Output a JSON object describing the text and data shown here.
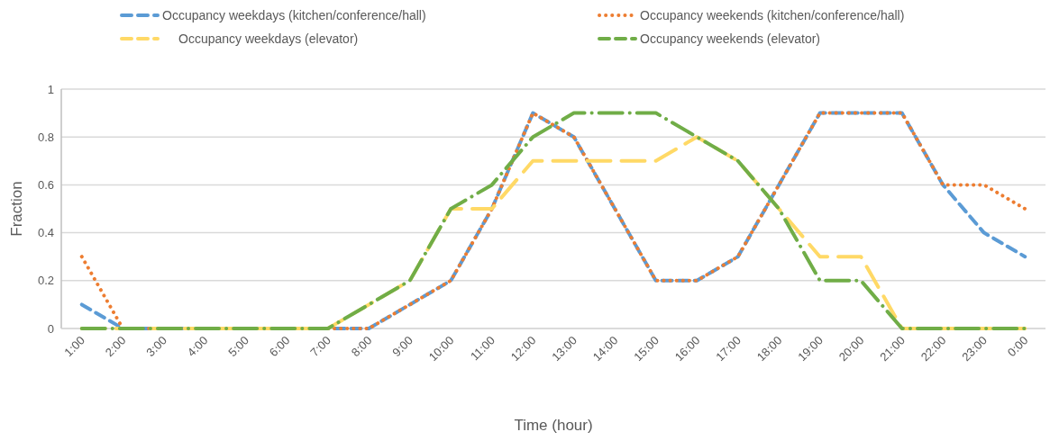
{
  "chart_data": {
    "type": "line",
    "xlabel": "Time (hour)",
    "ylabel": "Fraction",
    "categories": [
      "1:00",
      "2:00",
      "3:00",
      "4:00",
      "5:00",
      "6:00",
      "7:00",
      "8:00",
      "9:00",
      "10:00",
      "11:00",
      "12:00",
      "13:00",
      "14:00",
      "15:00",
      "16:00",
      "17:00",
      "18:00",
      "19:00",
      "20:00",
      "21:00",
      "22:00",
      "23:00",
      "0:00"
    ],
    "series": [
      {
        "name": "Occupancy weekdays (kitchen/conference/hall)",
        "color": "#5b9bd5",
        "line_style": "dashed",
        "values": [
          0.1,
          0,
          0,
          0,
          0,
          0,
          0,
          0,
          0.1,
          0.2,
          0.5,
          0.9,
          0.8,
          0.5,
          0.2,
          0.2,
          0.3,
          0.6,
          0.9,
          0.9,
          0.9,
          0.6,
          0.4,
          0.3
        ]
      },
      {
        "name": "Occupancy weekends (kitchen/conference/hall)",
        "color": "#ed7d31",
        "line_style": "dotted",
        "values": [
          0.3,
          0,
          0,
          0,
          0,
          0,
          0,
          0,
          0.1,
          0.2,
          0.5,
          0.9,
          0.8,
          0.5,
          0.2,
          0.2,
          0.3,
          0.6,
          0.9,
          0.9,
          0.9,
          0.6,
          0.6,
          0.5
        ]
      },
      {
        "name": "Occupancy weekdays (elevator)",
        "color": "#ffd966",
        "line_style": "dashed",
        "values": [
          0,
          0,
          0,
          0,
          0,
          0,
          0,
          0.1,
          0.2,
          0.5,
          0.5,
          0.7,
          0.7,
          0.7,
          0.7,
          0.8,
          0.7,
          0.5,
          0.3,
          0.3,
          0,
          0,
          0,
          0
        ]
      },
      {
        "name": "Occupancy weekends (elevator)",
        "color": "#70ad47",
        "line_style": "dashed",
        "values": [
          0,
          0,
          0,
          0,
          0,
          0,
          0,
          0.1,
          0.2,
          0.5,
          0.6,
          0.8,
          0.9,
          0.9,
          0.9,
          0.8,
          0.7,
          0.5,
          0.2,
          0.2,
          0,
          0,
          0,
          0
        ]
      }
    ],
    "ylim": [
      0,
      1
    ],
    "yticks": [
      0,
      0.2,
      0.4,
      0.6,
      0.8,
      1
    ],
    "grid": "y",
    "legend": "top",
    "marker": "none"
  }
}
